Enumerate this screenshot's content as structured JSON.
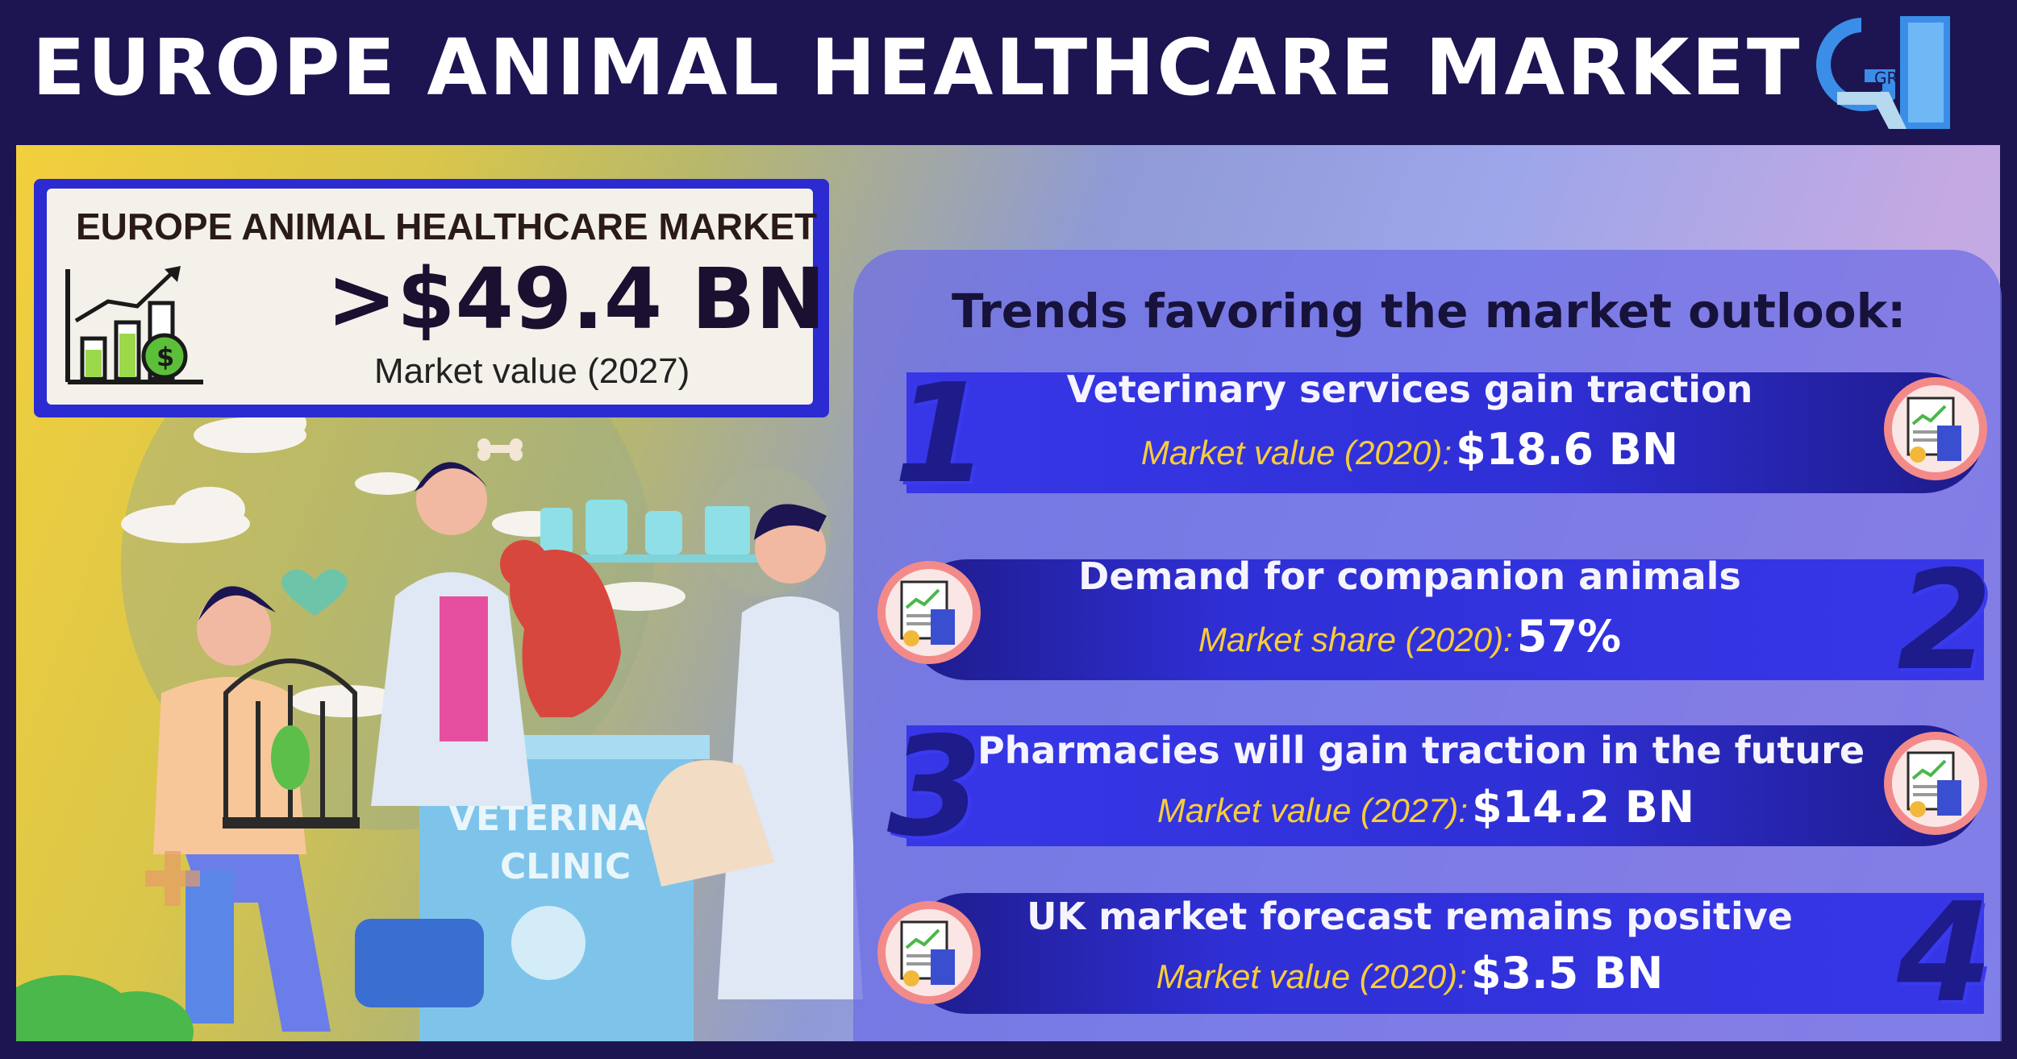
{
  "header": {
    "title": "EUROPE ANIMAL HEALTHCARE MARKET",
    "logo_letters": "GR",
    "logo_icon": "gr-logo-icon"
  },
  "market_value_box": {
    "title": "EUROPE ANIMAL HEALTHCARE MARKET",
    "value": ">$49.4 BN",
    "caption": "Market value (2027)",
    "icon": "growth-chart-dollar-icon"
  },
  "illustration": {
    "clinic_sign_line1": "VETERINARY",
    "clinic_sign_line2": "CLINIC"
  },
  "trends": {
    "heading": "Trends favoring the market outlook:",
    "items": [
      {
        "number": "1",
        "title": "Veterinary services gain traction",
        "label": "Market value (2020):",
        "value": "$18.6 BN",
        "icon": "report-calculator-icon"
      },
      {
        "number": "2",
        "title": "Demand for companion animals",
        "label": "Market share (2020):",
        "value": "57%",
        "icon": "report-calculator-icon"
      },
      {
        "number": "3",
        "title": "Pharmacies will gain traction in the future",
        "label": "Market value (2027):",
        "value": "$14.2 BN",
        "icon": "report-calculator-icon"
      },
      {
        "number": "4",
        "title": "UK market forecast remains positive",
        "label": "Market value (2020):",
        "value": "$3.5 BN",
        "icon": "report-calculator-icon"
      }
    ]
  },
  "colors": {
    "navy": "#1c1552",
    "bar_blue": "#3737e8",
    "accent_yellow": "#f7cc3b",
    "white": "#ffffff"
  }
}
